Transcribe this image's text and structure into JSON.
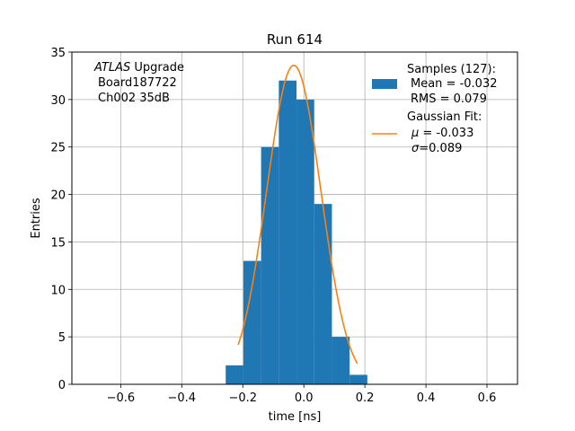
{
  "chart_data": {
    "type": "bar",
    "title": "Run 614",
    "xlabel": "time [ns]",
    "ylabel": "Entries",
    "xlim": [
      -0.76,
      0.7
    ],
    "ylim": [
      0,
      35
    ],
    "grid": true,
    "xticks": [
      -0.6,
      -0.4,
      -0.2,
      0.0,
      0.2,
      0.4,
      0.6
    ],
    "xtick_labels": [
      "−0.6",
      "−0.4",
      "−0.2",
      "0.0",
      "0.2",
      "0.4",
      "0.6"
    ],
    "yticks": [
      0,
      5,
      10,
      15,
      20,
      25,
      30,
      35
    ],
    "ytick_labels": [
      "0",
      "5",
      "10",
      "15",
      "20",
      "25",
      "30",
      "35"
    ],
    "histogram": {
      "bin_edges": [
        -0.256,
        -0.198,
        -0.14,
        -0.082,
        -0.024,
        0.034,
        0.092,
        0.15,
        0.208
      ],
      "counts": [
        2,
        13,
        25,
        32,
        30,
        19,
        5,
        1
      ],
      "color": "#1f77b4"
    },
    "fit": {
      "function": "gaussian",
      "amplitude": 33.6,
      "mu": -0.033,
      "sigma": 0.089,
      "x_range": [
        -0.215,
        0.175
      ],
      "color": "#ff7f0e"
    },
    "annotation": {
      "italic": "ATLAS",
      "rest": " Upgrade",
      "line2": "Board187722",
      "line3": "Ch002 35dB"
    },
    "legend": {
      "placement": "top-right",
      "samples": {
        "line1": "Samples (127):",
        "line2": "Mean = -0.032",
        "line3": "RMS = 0.079"
      },
      "fit": {
        "line1": "Gaussian Fit:",
        "line2_symbol": "μ",
        "line2_rest": " = -0.033",
        "line3_symbol": "σ",
        "line3_rest": "=0.089"
      }
    }
  }
}
